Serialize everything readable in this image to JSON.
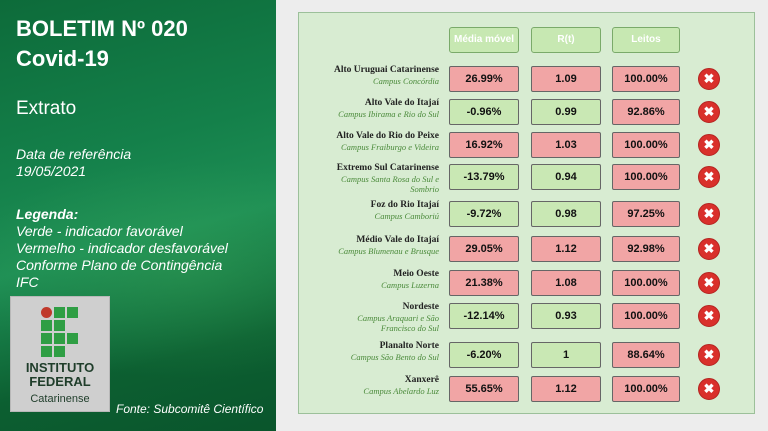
{
  "header": {
    "title_line1": "BOLETIM Nº 020",
    "title_line2": "Covid-19",
    "subtitle": "Extrato",
    "date_label": "Data de referência",
    "date_value": "19/05/2021"
  },
  "legend": {
    "title": "Legenda:",
    "green": "Verde - indicador favorável",
    "red": "Vermelho - indicador desfavorável",
    "plan_line1": "Conforme Plano de Contingência",
    "plan_line2": "IFC"
  },
  "logo": {
    "line1": "INSTITUTO",
    "line2": "FEDERAL",
    "line3": "Catarinense"
  },
  "footer": {
    "source": "Fonte: Subcomitê Científico"
  },
  "columns": [
    "Média móvel",
    "R(t)",
    "Leitos"
  ],
  "colors": {
    "red": "#f1a5a5",
    "green": "#c9e8b4",
    "x_icon": "#d9302b"
  },
  "rows": [
    {
      "region": "Alto Uruguai Catarinense",
      "campus": "Campus Concórdia",
      "campus2": "",
      "media": "26.99%",
      "media_status": "red",
      "rt": "1.09",
      "rt_status": "red",
      "leitos": "100.00%",
      "leitos_status": "red"
    },
    {
      "region": "Alto Vale do Itajaí",
      "campus": "Campus Ibirama e Rio do Sul",
      "campus2": "",
      "media": "-0.96%",
      "media_status": "green",
      "rt": "0.99",
      "rt_status": "green",
      "leitos": "92.86%",
      "leitos_status": "red"
    },
    {
      "region": "Alto Vale do Rio do Peixe",
      "campus": "Campus Fraiburgo e Videira",
      "campus2": "",
      "media": "16.92%",
      "media_status": "red",
      "rt": "1.03",
      "rt_status": "red",
      "leitos": "100.00%",
      "leitos_status": "red"
    },
    {
      "region": "Extremo Sul Catarinense",
      "campus": "Campus Santa Rosa do Sul e",
      "campus2": "Sombrio",
      "media": "-13.79%",
      "media_status": "green",
      "rt": "0.94",
      "rt_status": "green",
      "leitos": "100.00%",
      "leitos_status": "red"
    },
    {
      "region": "Foz do Rio Itajaí",
      "campus": "Campus Camboriú",
      "campus2": "",
      "media": "-9.72%",
      "media_status": "green",
      "rt": "0.98",
      "rt_status": "green",
      "leitos": "97.25%",
      "leitos_status": "red"
    },
    {
      "region": "Médio Vale do Itajaí",
      "campus": "Campus Blumenau e Brusque",
      "campus2": "",
      "media": "29.05%",
      "media_status": "red",
      "rt": "1.12",
      "rt_status": "red",
      "leitos": "92.98%",
      "leitos_status": "red"
    },
    {
      "region": "Meio Oeste",
      "campus": "Campus Luzerna",
      "campus2": "",
      "media": "21.38%",
      "media_status": "red",
      "rt": "1.08",
      "rt_status": "red",
      "leitos": "100.00%",
      "leitos_status": "red"
    },
    {
      "region": "Nordeste",
      "campus": "Campus Araquari e São",
      "campus2": "Francisco do Sul",
      "media": "-12.14%",
      "media_status": "green",
      "rt": "0.93",
      "rt_status": "green",
      "leitos": "100.00%",
      "leitos_status": "red"
    },
    {
      "region": "Planalto Norte",
      "campus": "Campus São Bento do Sul",
      "campus2": "",
      "media": "-6.20%",
      "media_status": "green",
      "rt": "1",
      "rt_status": "green",
      "leitos": "88.64%",
      "leitos_status": "red"
    },
    {
      "region": "Xanxerê",
      "campus": "Campus Abelardo Luz",
      "campus2": "",
      "media": "55.65%",
      "media_status": "red",
      "rt": "1.12",
      "rt_status": "red",
      "leitos": "100.00%",
      "leitos_status": "red"
    }
  ]
}
